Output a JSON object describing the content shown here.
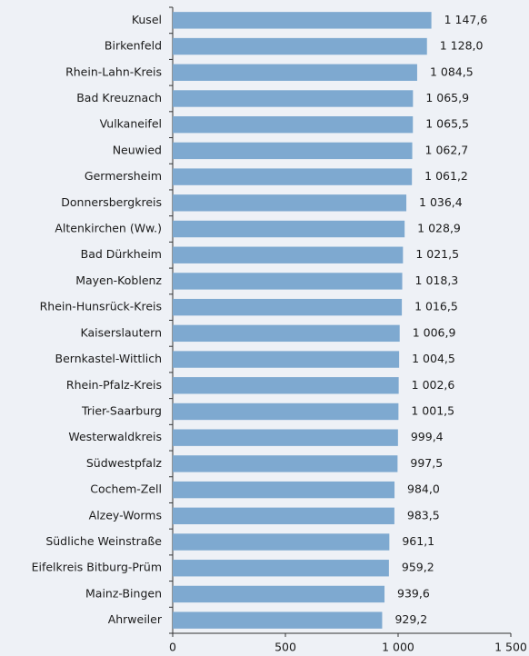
{
  "chart_data": {
    "type": "hbar",
    "categories": [
      "Kusel",
      "Birkenfeld",
      "Rhein-Lahn-Kreis",
      "Bad Kreuznach",
      "Vulkaneifel",
      "Neuwied",
      "Germersheim",
      "Donnersbergkreis",
      "Altenkirchen (Ww.)",
      "Bad Dürkheim",
      "Mayen-Koblenz",
      "Rhein-Hunsrück-Kreis",
      "Kaiserslautern",
      "Bernkastel-Wittlich",
      "Rhein-Pfalz-Kreis",
      "Trier-Saarburg",
      "Westerwaldkreis",
      "Südwestpfalz",
      "Cochem-Zell",
      "Alzey-Worms",
      "Südliche Weinstraße",
      "Eifelkreis Bitburg-Prüm",
      "Mainz-Bingen",
      "Ahrweiler"
    ],
    "values": [
      1147.6,
      1128.0,
      1084.5,
      1065.9,
      1065.5,
      1062.7,
      1061.2,
      1036.4,
      1028.9,
      1021.5,
      1018.3,
      1016.5,
      1006.9,
      1004.5,
      1002.6,
      1001.5,
      999.4,
      997.5,
      984.0,
      983.5,
      961.1,
      959.2,
      939.6,
      929.2
    ],
    "value_labels": [
      "1 147,6",
      "1 128,0",
      "1 084,5",
      "1 065,9",
      "1 065,5",
      "1 062,7",
      "1 061,2",
      "1 036,4",
      "1 028,9",
      "1 021,5",
      "1 018,3",
      "1 016,5",
      "1 006,9",
      "1 004,5",
      "1 002,6",
      "1 001,5",
      "999,4",
      "997,5",
      "984,0",
      "983,5",
      "961,1",
      "959,2",
      "939,6",
      "929,2"
    ],
    "color": "#7ea9d0",
    "xlim": [
      0,
      1500
    ],
    "xticks": [
      0,
      500,
      {
        "value": 1000,
        "label": "1 000"
      },
      {
        "value": 1500,
        "label": "1 500"
      }
    ]
  }
}
